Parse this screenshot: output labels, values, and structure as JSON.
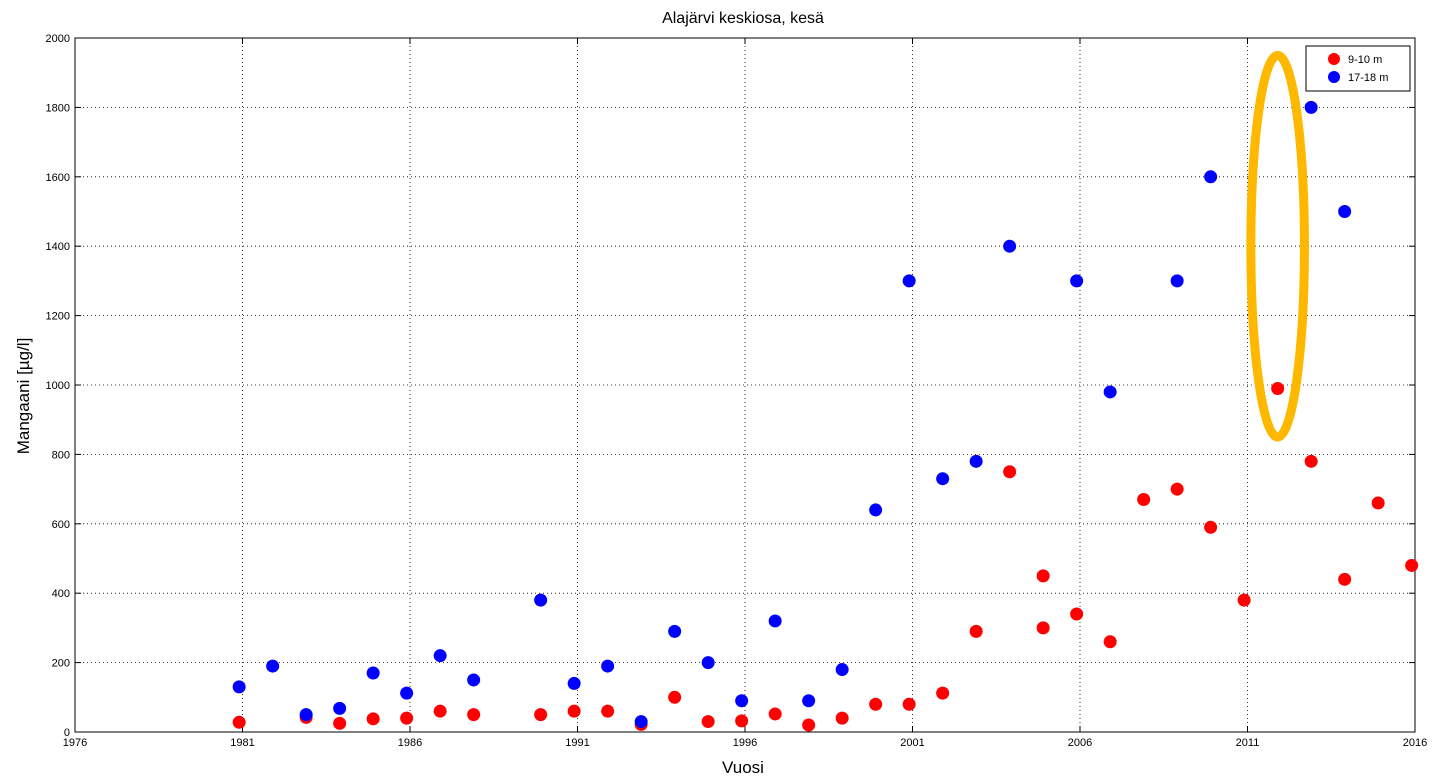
{
  "chart_data": {
    "type": "scatter",
    "title": "Alajärvi keskiosa, kesä",
    "xlabel": "Vuosi",
    "ylabel": "Mangaani [µg/l]",
    "xlim": [
      1976,
      2016
    ],
    "ylim": [
      0,
      2000
    ],
    "xticks": [
      "1976",
      "1981",
      "1986",
      "1991",
      "1996",
      "2001",
      "2006",
      "2011",
      "2016"
    ],
    "yticks": [
      "0",
      "200",
      "400",
      "600",
      "800",
      "1000",
      "1200",
      "1400",
      "1600",
      "1800",
      "2000"
    ],
    "grid": true,
    "legend_position": "top-right",
    "series": [
      {
        "name": "9-10 m",
        "color": "#ff0000",
        "points": [
          [
            1980.9,
            28
          ],
          [
            1982.9,
            42
          ],
          [
            1983.9,
            25
          ],
          [
            1984.9,
            38
          ],
          [
            1985.9,
            40
          ],
          [
            1986.9,
            60
          ],
          [
            1987.9,
            50
          ],
          [
            1989.9,
            50
          ],
          [
            1990.9,
            60
          ],
          [
            1991.9,
            60
          ],
          [
            1992.9,
            22
          ],
          [
            1993.9,
            100
          ],
          [
            1994.9,
            30
          ],
          [
            1995.9,
            32
          ],
          [
            1996.9,
            52
          ],
          [
            1997.9,
            20
          ],
          [
            1998.9,
            40
          ],
          [
            1999.9,
            80
          ],
          [
            2000.9,
            80
          ],
          [
            2001.9,
            112
          ],
          [
            2002.9,
            290
          ],
          [
            2003.9,
            750
          ],
          [
            2004.9,
            450
          ],
          [
            2004.9,
            300
          ],
          [
            2005.9,
            340
          ],
          [
            2006.9,
            260
          ],
          [
            2007.9,
            670
          ],
          [
            2008.9,
            700
          ],
          [
            2009.9,
            590
          ],
          [
            2010.9,
            380
          ],
          [
            2011.9,
            990
          ],
          [
            2012.9,
            780
          ],
          [
            2013.9,
            440
          ],
          [
            2014.9,
            660
          ],
          [
            2015.9,
            480
          ]
        ]
      },
      {
        "name": "17-18 m",
        "color": "#0000ff",
        "points": [
          [
            1980.9,
            130
          ],
          [
            1981.9,
            190
          ],
          [
            1982.9,
            50
          ],
          [
            1983.9,
            68
          ],
          [
            1984.9,
            170
          ],
          [
            1985.9,
            112
          ],
          [
            1986.9,
            220
          ],
          [
            1987.9,
            150
          ],
          [
            1989.9,
            380
          ],
          [
            1990.9,
            140
          ],
          [
            1991.9,
            190
          ],
          [
            1992.9,
            30
          ],
          [
            1993.9,
            290
          ],
          [
            1994.9,
            200
          ],
          [
            1995.9,
            90
          ],
          [
            1996.9,
            320
          ],
          [
            1997.9,
            90
          ],
          [
            1998.9,
            180
          ],
          [
            1999.9,
            640
          ],
          [
            2000.9,
            1300
          ],
          [
            2001.9,
            730
          ],
          [
            2002.9,
            780
          ],
          [
            2003.9,
            1400
          ],
          [
            2005.9,
            1300
          ],
          [
            2006.9,
            980
          ],
          [
            2008.9,
            1300
          ],
          [
            2009.9,
            1600
          ],
          [
            2012.9,
            1800
          ],
          [
            2013.9,
            1500
          ]
        ]
      }
    ],
    "annotations": [
      {
        "type": "ellipse",
        "color": "#ffb800",
        "cx": 2011.9,
        "cy": 1400,
        "rx_years": 0.8,
        "ry_value": 550
      }
    ]
  }
}
